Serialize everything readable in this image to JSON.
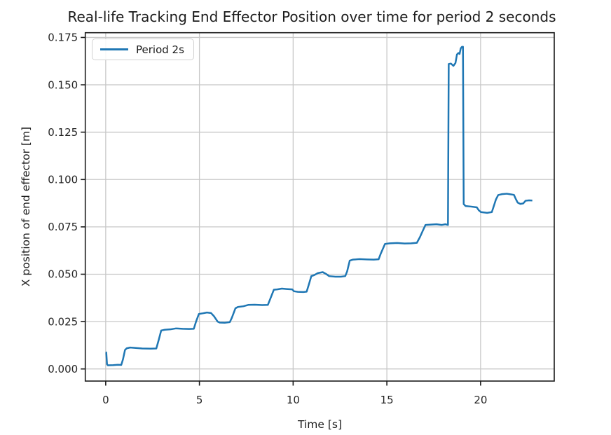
{
  "colors": {
    "line": "#1f77b4",
    "grid": "#c8c8c8",
    "spine": "#1a1a1a",
    "tick_text": "#262626",
    "background": "#ffffff"
  },
  "chart_data": {
    "type": "line",
    "title": "Real-life Tracking End Effector Position over time for period 2 seconds",
    "xlabel": "Time [s]",
    "ylabel": "X position of end effector [m]",
    "grid": true,
    "legend": {
      "position": "upper left",
      "entries": [
        {
          "label": "Period 2s",
          "color": "#1f77b4"
        }
      ]
    },
    "xlim": [
      -1.09,
      23.93
    ],
    "ylim": [
      -0.0064,
      0.1775
    ],
    "x_ticks": [
      {
        "v": 0,
        "label": "0"
      },
      {
        "v": 5,
        "label": "5"
      },
      {
        "v": 10,
        "label": "10"
      },
      {
        "v": 15,
        "label": "15"
      },
      {
        "v": 20,
        "label": "20"
      }
    ],
    "y_ticks": [
      {
        "v": 0.0,
        "label": "0.000"
      },
      {
        "v": 0.025,
        "label": "0.025"
      },
      {
        "v": 0.05,
        "label": "0.050"
      },
      {
        "v": 0.075,
        "label": "0.075"
      },
      {
        "v": 0.1,
        "label": "0.100"
      },
      {
        "v": 0.125,
        "label": "0.125"
      },
      {
        "v": 0.15,
        "label": "0.150"
      },
      {
        "v": 0.175,
        "label": "0.175"
      }
    ],
    "series": [
      {
        "name": "Period 2s",
        "color": "#1f77b4",
        "points": [
          [
            0.0,
            0.0087
          ],
          [
            0.03,
            0.0087
          ],
          [
            0.07,
            0.0025
          ],
          [
            0.12,
            0.0019
          ],
          [
            0.4,
            0.002
          ],
          [
            0.65,
            0.0022
          ],
          [
            0.83,
            0.0021
          ],
          [
            0.92,
            0.005
          ],
          [
            1.03,
            0.01
          ],
          [
            1.12,
            0.0109
          ],
          [
            1.3,
            0.0113
          ],
          [
            1.55,
            0.0111
          ],
          [
            1.95,
            0.0108
          ],
          [
            2.4,
            0.0107
          ],
          [
            2.7,
            0.0108
          ],
          [
            2.82,
            0.015
          ],
          [
            2.96,
            0.0203
          ],
          [
            3.15,
            0.0207
          ],
          [
            3.45,
            0.0209
          ],
          [
            3.75,
            0.0214
          ],
          [
            4.1,
            0.0212
          ],
          [
            4.45,
            0.0211
          ],
          [
            4.7,
            0.0212
          ],
          [
            4.82,
            0.025
          ],
          [
            4.97,
            0.029
          ],
          [
            5.2,
            0.0294
          ],
          [
            5.4,
            0.0298
          ],
          [
            5.62,
            0.0295
          ],
          [
            5.78,
            0.0278
          ],
          [
            5.97,
            0.025
          ],
          [
            6.08,
            0.0245
          ],
          [
            6.35,
            0.0244
          ],
          [
            6.62,
            0.0247
          ],
          [
            6.73,
            0.027
          ],
          [
            6.92,
            0.032
          ],
          [
            7.05,
            0.0327
          ],
          [
            7.35,
            0.0331
          ],
          [
            7.6,
            0.0338
          ],
          [
            7.95,
            0.0339
          ],
          [
            8.35,
            0.0337
          ],
          [
            8.65,
            0.0338
          ],
          [
            8.78,
            0.037
          ],
          [
            8.97,
            0.0418
          ],
          [
            9.15,
            0.042
          ],
          [
            9.4,
            0.0424
          ],
          [
            9.65,
            0.0422
          ],
          [
            9.95,
            0.042
          ],
          [
            10.05,
            0.041
          ],
          [
            10.25,
            0.0407
          ],
          [
            10.55,
            0.0406
          ],
          [
            10.72,
            0.0408
          ],
          [
            10.82,
            0.044
          ],
          [
            10.97,
            0.049
          ],
          [
            11.12,
            0.0495
          ],
          [
            11.32,
            0.0506
          ],
          [
            11.58,
            0.0511
          ],
          [
            11.78,
            0.05
          ],
          [
            11.92,
            0.049
          ],
          [
            12.25,
            0.0487
          ],
          [
            12.55,
            0.0487
          ],
          [
            12.78,
            0.049
          ],
          [
            12.88,
            0.0515
          ],
          [
            13.02,
            0.0572
          ],
          [
            13.18,
            0.0577
          ],
          [
            13.55,
            0.058
          ],
          [
            13.95,
            0.0578
          ],
          [
            14.3,
            0.0577
          ],
          [
            14.56,
            0.0579
          ],
          [
            14.68,
            0.061
          ],
          [
            14.9,
            0.066
          ],
          [
            15.15,
            0.0663
          ],
          [
            15.55,
            0.0665
          ],
          [
            15.95,
            0.0662
          ],
          [
            16.3,
            0.0663
          ],
          [
            16.6,
            0.0666
          ],
          [
            16.76,
            0.0695
          ],
          [
            16.92,
            0.073
          ],
          [
            17.06,
            0.076
          ],
          [
            17.35,
            0.0762
          ],
          [
            17.65,
            0.0764
          ],
          [
            17.92,
            0.076
          ],
          [
            18.12,
            0.0764
          ],
          [
            18.26,
            0.076
          ],
          [
            18.3,
            0.161
          ],
          [
            18.42,
            0.1612
          ],
          [
            18.55,
            0.16
          ],
          [
            18.66,
            0.1615
          ],
          [
            18.74,
            0.166
          ],
          [
            18.82,
            0.1668
          ],
          [
            18.88,
            0.1663
          ],
          [
            18.94,
            0.1692
          ],
          [
            19.0,
            0.17
          ],
          [
            19.06,
            0.1701
          ],
          [
            19.1,
            0.087
          ],
          [
            19.2,
            0.086
          ],
          [
            19.5,
            0.0857
          ],
          [
            19.8,
            0.0853
          ],
          [
            19.9,
            0.0838
          ],
          [
            20.02,
            0.0828
          ],
          [
            20.35,
            0.0824
          ],
          [
            20.6,
            0.0828
          ],
          [
            20.7,
            0.0858
          ],
          [
            20.82,
            0.0895
          ],
          [
            20.94,
            0.0918
          ],
          [
            21.15,
            0.0923
          ],
          [
            21.4,
            0.0925
          ],
          [
            21.65,
            0.0921
          ],
          [
            21.78,
            0.0919
          ],
          [
            21.88,
            0.0897
          ],
          [
            21.98,
            0.0878
          ],
          [
            22.12,
            0.0871
          ],
          [
            22.28,
            0.0874
          ],
          [
            22.4,
            0.0888
          ],
          [
            22.58,
            0.089
          ],
          [
            22.76,
            0.0889
          ]
        ]
      }
    ]
  }
}
